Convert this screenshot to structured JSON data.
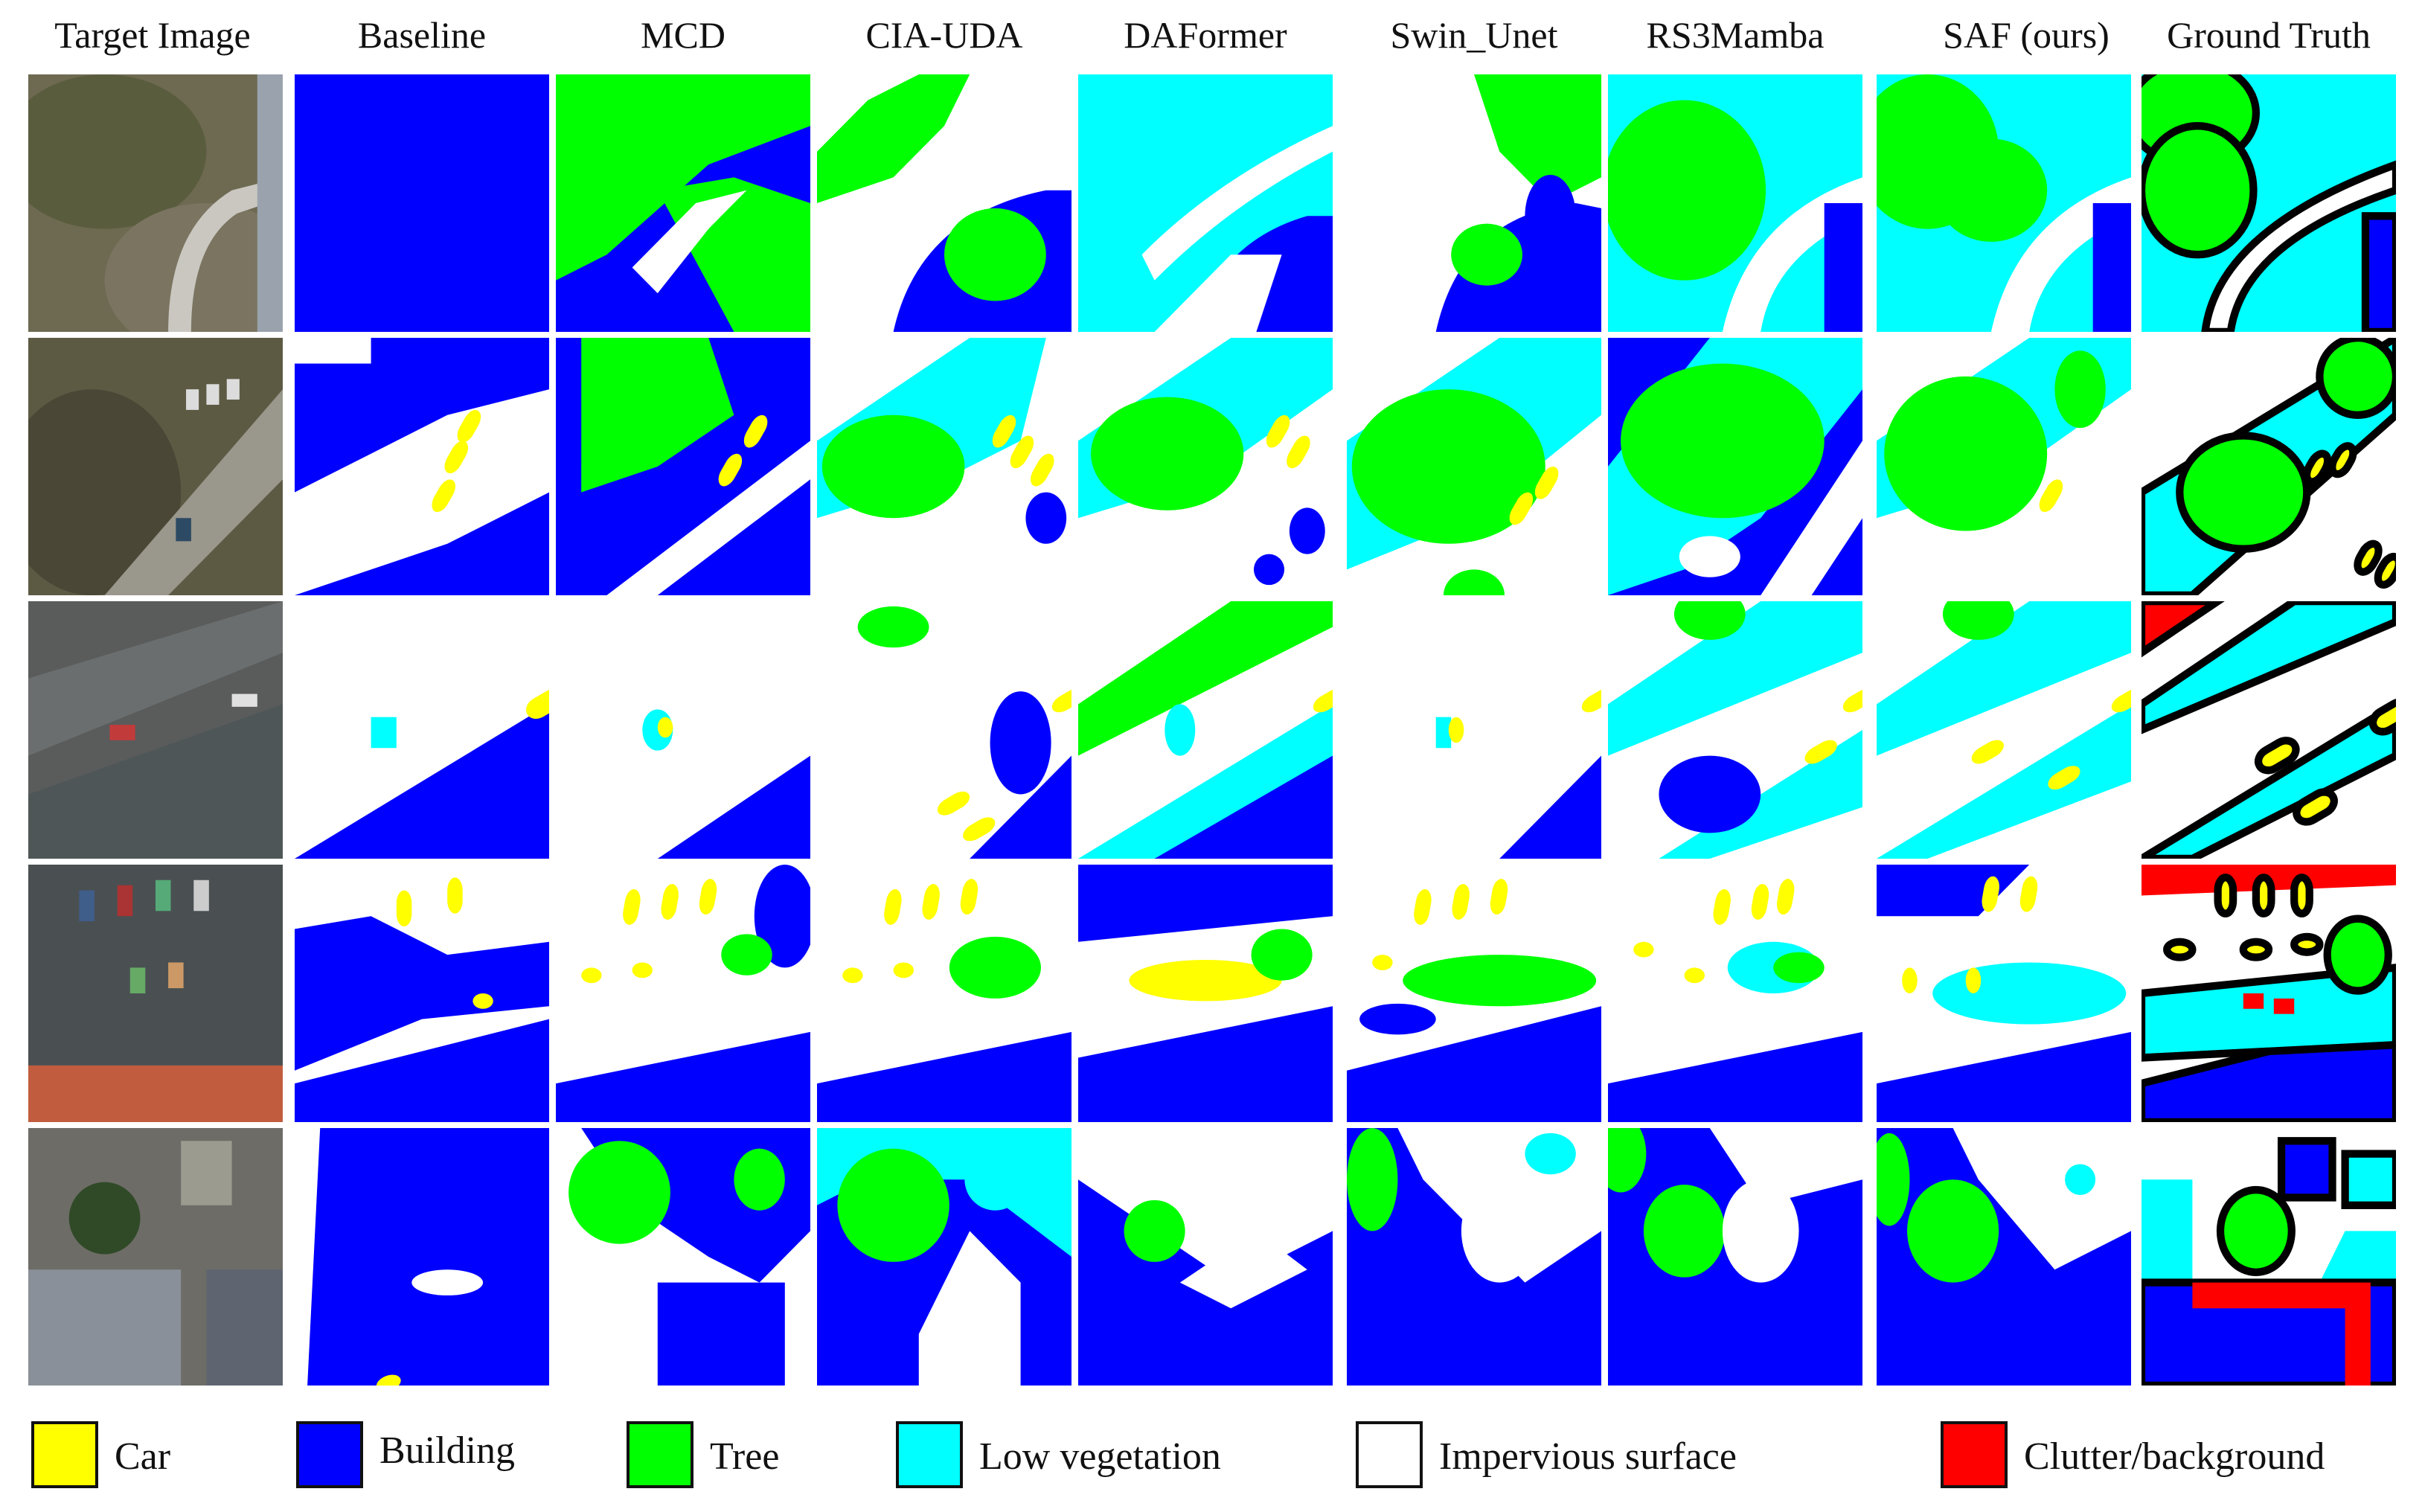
{
  "colors": {
    "car": "#ffff00",
    "building": "#0000ff",
    "tree": "#00ff00",
    "low_vegetation": "#00ffff",
    "impervious_surface": "#ffffff",
    "clutter": "#ff0000"
  },
  "columns": [
    {
      "id": "target",
      "label": "Target   Image"
    },
    {
      "id": "baseline",
      "label": "Baseline"
    },
    {
      "id": "mcd",
      "label": "MCD"
    },
    {
      "id": "cia",
      "label": "CIA-UDA"
    },
    {
      "id": "daformer",
      "label": "DAFormer"
    },
    {
      "id": "swin",
      "label": "Swin_Unet"
    },
    {
      "id": "rs3",
      "label": "RS3Mamba"
    },
    {
      "id": "saf",
      "label": "SAF (ours)"
    },
    {
      "id": "gt",
      "label": "Ground Truth"
    }
  ],
  "legend": [
    {
      "label": "Car",
      "color": "#ffff00"
    },
    {
      "label": "Building",
      "color": "#0000ff"
    },
    {
      "label": "Tree",
      "color": "#00ff00"
    },
    {
      "label": "Low vegetation",
      "color": "#00ffff"
    },
    {
      "label": "Impervious surface",
      "color": "#ffffff"
    },
    {
      "label": "Clutter/background",
      "color": "#ff0000"
    }
  ]
}
